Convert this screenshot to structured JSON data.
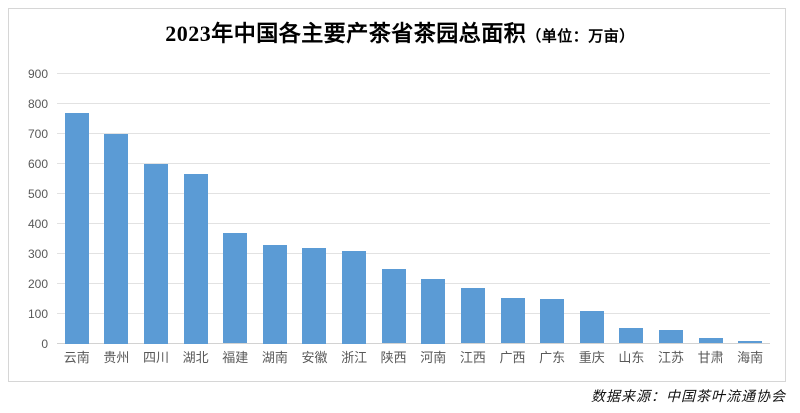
{
  "title": {
    "main": "2023年中国各主要产茶省茶园总面积",
    "unit": "（单位：万亩）"
  },
  "source_note": "数据来源：中国茶叶流通协会",
  "colors": {
    "bar": "#5b9bd5",
    "gridline": "#e2e2e2",
    "axis_line": "#d2d2d2",
    "axis_label": "#595959",
    "title": "#000000",
    "frame_border": "#d6d6d6"
  },
  "chart_data": {
    "type": "bar",
    "title": "2023年中国各主要产茶省茶园总面积（单位：万亩）",
    "categories": [
      "云南",
      "贵州",
      "四川",
      "湖北",
      "福建",
      "湖南",
      "安徽",
      "浙江",
      "陕西",
      "河南",
      "江西",
      "广西",
      "广东",
      "重庆",
      "山东",
      "江苏",
      "甘肃",
      "海南"
    ],
    "values": [
      770,
      700,
      600,
      565,
      368,
      330,
      320,
      310,
      248,
      215,
      184,
      153,
      147,
      108,
      53,
      46,
      17,
      8
    ],
    "xlabel": "",
    "ylabel": "",
    "ylim": [
      0,
      900
    ],
    "yticks": [
      0,
      100,
      200,
      300,
      400,
      500,
      600,
      700,
      800,
      900
    ],
    "grid": true,
    "legend": false,
    "source": "数据来源：中国茶叶流通协会"
  }
}
